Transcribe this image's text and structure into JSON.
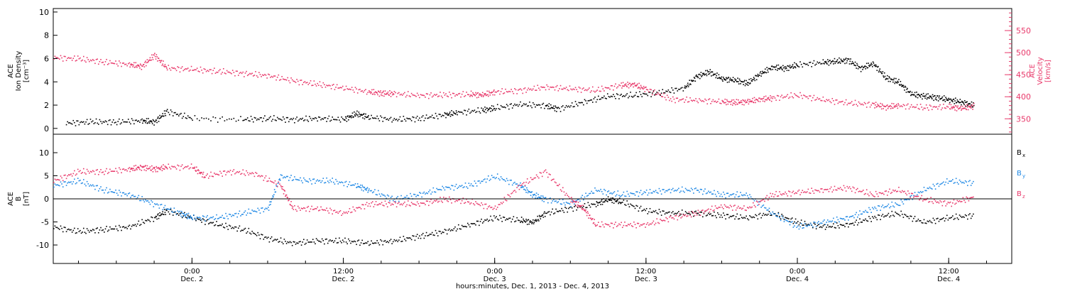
{
  "colors": {
    "black": "#000000",
    "pink": "#e8386a",
    "blue": "#1e88e5"
  },
  "chart_data": [
    {
      "type": "scatter",
      "panel": "top",
      "ylabel_left": [
        "ACE",
        "Ion Density",
        "[cm⁻³]"
      ],
      "ylabel_right": [
        "ACE",
        "Velocity",
        "[km/s]"
      ],
      "ylim_left": [
        -0.5,
        10.3
      ],
      "ylim_right": [
        315,
        600
      ],
      "yticks_left": [
        0,
        2,
        4,
        6,
        8,
        10
      ],
      "yticks_right": [
        350,
        400,
        450,
        500,
        550
      ],
      "xlim_hours": [
        -11,
        65
      ],
      "series": [
        {
          "color": "black",
          "axis": "left",
          "points": [
            [
              -10,
              0.5
            ],
            [
              -8,
              0.6
            ],
            [
              -6,
              0.6
            ],
            [
              -4,
              0.7
            ],
            [
              -3,
              0.6
            ],
            [
              -2,
              1.5
            ],
            [
              0,
              0.9
            ],
            [
              4,
              0.8
            ],
            [
              6,
              0.9
            ],
            [
              8,
              0.8
            ],
            [
              10,
              0.9
            ],
            [
              12,
              0.8
            ],
            [
              13,
              1.3
            ],
            [
              14,
              1.0
            ],
            [
              16,
              0.8
            ],
            [
              18,
              0.9
            ],
            [
              20,
              1.2
            ],
            [
              21,
              1.4
            ],
            [
              23,
              1.6
            ],
            [
              24,
              1.8
            ],
            [
              26,
              2.1
            ],
            [
              28,
              2.0
            ],
            [
              29,
              1.7
            ],
            [
              31,
              2.3
            ],
            [
              33,
              2.8
            ],
            [
              35,
              2.9
            ],
            [
              37,
              3.1
            ],
            [
              39,
              3.5
            ],
            [
              40,
              4.5
            ],
            [
              41,
              4.9
            ],
            [
              42,
              4.3
            ],
            [
              43,
              4.2
            ],
            [
              44,
              3.9
            ],
            [
              45,
              4.7
            ],
            [
              46,
              5.3
            ],
            [
              47,
              5.2
            ],
            [
              48,
              5.5
            ],
            [
              50,
              5.7
            ],
            [
              51,
              5.8
            ],
            [
              52,
              5.9
            ],
            [
              53,
              5.2
            ],
            [
              54,
              5.6
            ],
            [
              55,
              4.4
            ],
            [
              56,
              4.0
            ],
            [
              57,
              3.0
            ],
            [
              58,
              2.8
            ],
            [
              59,
              2.7
            ],
            [
              60,
              2.5
            ],
            [
              61,
              2.3
            ],
            [
              62,
              2.0
            ]
          ]
        },
        {
          "color": "pink",
          "axis": "right",
          "points": [
            [
              -11,
              490
            ],
            [
              -9,
              487
            ],
            [
              -7,
              480
            ],
            [
              -5,
              474
            ],
            [
              -4,
              470
            ],
            [
              -3,
              495
            ],
            [
              -2,
              466
            ],
            [
              0,
              463
            ],
            [
              2,
              459
            ],
            [
              4,
              454
            ],
            [
              6,
              449
            ],
            [
              8,
              437
            ],
            [
              10,
              429
            ],
            [
              12,
              421
            ],
            [
              14,
              412
            ],
            [
              15,
              409
            ],
            [
              16,
              408
            ],
            [
              18,
              404
            ],
            [
              20,
              405
            ],
            [
              22,
              407
            ],
            [
              23,
              405
            ],
            [
              24,
              412
            ],
            [
              26,
              415
            ],
            [
              28,
              423
            ],
            [
              30,
              419
            ],
            [
              32,
              416
            ],
            [
              34,
              427
            ],
            [
              35,
              429
            ],
            [
              36,
              418
            ],
            [
              38,
              395
            ],
            [
              40,
              393
            ],
            [
              42,
              390
            ],
            [
              43,
              388
            ],
            [
              44,
              390
            ],
            [
              45,
              395
            ],
            [
              46,
              398
            ],
            [
              48,
              405
            ],
            [
              50,
              394
            ],
            [
              52,
              387
            ],
            [
              54,
              383
            ],
            [
              55,
              378
            ],
            [
              56,
              381
            ],
            [
              58,
              377
            ],
            [
              60,
              378
            ],
            [
              61,
              375
            ],
            [
              62,
              380
            ]
          ]
        }
      ]
    },
    {
      "type": "scatter",
      "panel": "bottom",
      "ylabel_left": [
        "ACE",
        "B",
        "[nT]"
      ],
      "ylim": [
        -14,
        14
      ],
      "yticks": [
        -10,
        -5,
        0,
        5,
        10
      ],
      "zero_line": true,
      "xlim_hours": [
        -11,
        65
      ],
      "xticks": [
        {
          "hours": 0,
          "time": "0:00",
          "day": "Dec. 2"
        },
        {
          "hours": 12,
          "time": "12:00",
          "day": "Dec. 2"
        },
        {
          "hours": 24,
          "time": "0:00",
          "day": "Dec. 3"
        },
        {
          "hours": 36,
          "time": "12:00",
          "day": "Dec. 3"
        },
        {
          "hours": 48,
          "time": "0:00",
          "day": "Dec. 4"
        },
        {
          "hours": 60,
          "time": "12:00",
          "day": "Dec. 4"
        }
      ],
      "xlabel": "hours:minutes, Dec.  1, 2013 - Dec.  4, 2013",
      "legend": [
        {
          "name": "B",
          "subscript": "x",
          "color": "black"
        },
        {
          "name": "B",
          "subscript": "y",
          "color": "blue"
        },
        {
          "name": "B",
          "subscript": "z",
          "color": "pink"
        }
      ],
      "series": [
        {
          "name": "Bx",
          "color": "black",
          "points": [
            [
              -11,
              -6
            ],
            [
              -9,
              -7
            ],
            [
              -7,
              -6.5
            ],
            [
              -5,
              -6
            ],
            [
              -3,
              -4
            ],
            [
              -2,
              -2.5
            ],
            [
              0,
              -4
            ],
            [
              2,
              -5.5
            ],
            [
              4,
              -6.5
            ],
            [
              6,
              -8.5
            ],
            [
              8,
              -9.5
            ],
            [
              10,
              -9
            ],
            [
              12,
              -9
            ],
            [
              14,
              -9.5
            ],
            [
              16,
              -9
            ],
            [
              18,
              -8
            ],
            [
              20,
              -7
            ],
            [
              22,
              -5.5
            ],
            [
              24,
              -4
            ],
            [
              26,
              -4.5
            ],
            [
              27,
              -5
            ],
            [
              28,
              -3
            ],
            [
              30,
              -2
            ],
            [
              32,
              -1
            ],
            [
              33,
              0
            ],
            [
              34,
              -0.5
            ],
            [
              36,
              -2.5
            ],
            [
              38,
              -3
            ],
            [
              40,
              -3
            ],
            [
              42,
              -3.5
            ],
            [
              44,
              -4
            ],
            [
              46,
              -3
            ],
            [
              48,
              -5
            ],
            [
              50,
              -6
            ],
            [
              52,
              -5.5
            ],
            [
              54,
              -4
            ],
            [
              56,
              -3
            ],
            [
              58,
              -5
            ],
            [
              60,
              -4
            ],
            [
              62,
              -3.5
            ]
          ]
        },
        {
          "name": "By",
          "color": "blue",
          "points": [
            [
              -11,
              3
            ],
            [
              -9,
              4
            ],
            [
              -7,
              2
            ],
            [
              -5,
              1
            ],
            [
              -3,
              -1
            ],
            [
              -1,
              -3
            ],
            [
              0,
              -4
            ],
            [
              2,
              -4
            ],
            [
              4,
              -3
            ],
            [
              6,
              -2
            ],
            [
              7,
              5
            ],
            [
              9,
              4
            ],
            [
              11,
              4
            ],
            [
              13,
              3
            ],
            [
              14,
              2
            ],
            [
              16,
              0
            ],
            [
              18,
              1
            ],
            [
              20,
              2.5
            ],
            [
              22,
              3
            ],
            [
              24,
              5
            ],
            [
              26,
              3
            ],
            [
              27,
              1
            ],
            [
              28,
              0
            ],
            [
              30,
              -1
            ],
            [
              32,
              2
            ],
            [
              34,
              1
            ],
            [
              36,
              1.5
            ],
            [
              38,
              2
            ],
            [
              40,
              2
            ],
            [
              42,
              1
            ],
            [
              44,
              1
            ],
            [
              46,
              -3
            ],
            [
              48,
              -6
            ],
            [
              50,
              -5
            ],
            [
              52,
              -4
            ],
            [
              54,
              -2
            ],
            [
              56,
              -1
            ],
            [
              58,
              2
            ],
            [
              60,
              4
            ],
            [
              62,
              3.5
            ]
          ]
        },
        {
          "name": "Bz",
          "color": "pink",
          "points": [
            [
              -11,
              4
            ],
            [
              -9,
              6
            ],
            [
              -7,
              6
            ],
            [
              -5,
              6.5
            ],
            [
              -4,
              7
            ],
            [
              -3,
              6.5
            ],
            [
              -2,
              7
            ],
            [
              0,
              7
            ],
            [
              1,
              5
            ],
            [
              3,
              6
            ],
            [
              5,
              5.5
            ],
            [
              7,
              3
            ],
            [
              8,
              -2
            ],
            [
              10,
              -2
            ],
            [
              12,
              -3
            ],
            [
              14,
              -1
            ],
            [
              16,
              -1
            ],
            [
              18,
              -1
            ],
            [
              20,
              0
            ],
            [
              22,
              -0.5
            ],
            [
              24,
              -2
            ],
            [
              26,
              3
            ],
            [
              28,
              6
            ],
            [
              30,
              0
            ],
            [
              31,
              -2
            ],
            [
              32,
              -5.5
            ],
            [
              34,
              -5.5
            ],
            [
              36,
              -5.5
            ],
            [
              38,
              -4
            ],
            [
              40,
              -3
            ],
            [
              42,
              -1.5
            ],
            [
              44,
              -2
            ],
            [
              46,
              1
            ],
            [
              48,
              1.5
            ],
            [
              50,
              2
            ],
            [
              52,
              2.5
            ],
            [
              54,
              1
            ],
            [
              56,
              2
            ],
            [
              58,
              0
            ],
            [
              60,
              -1
            ],
            [
              62,
              0.5
            ]
          ]
        }
      ]
    }
  ]
}
